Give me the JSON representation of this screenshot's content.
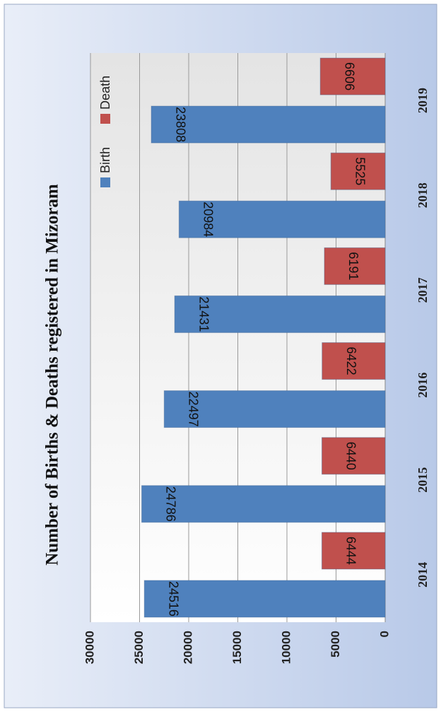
{
  "chart_data": {
    "type": "bar",
    "title": "Number of Births & Deaths registered in Mizoram",
    "categories": [
      "2014",
      "2015",
      "2016",
      "2017",
      "2018",
      "2019"
    ],
    "series": [
      {
        "name": "Birth",
        "color": "#4f81bd",
        "values": [
          24516,
          24786,
          22497,
          21431,
          20984,
          23808
        ]
      },
      {
        "name": "Death",
        "color": "#c0504d",
        "values": [
          6444,
          6440,
          6422,
          6191,
          5525,
          6606
        ]
      }
    ],
    "ylim": [
      0,
      30000
    ],
    "yticks": [
      0,
      5000,
      10000,
      15000,
      20000,
      25000,
      30000
    ],
    "grid": true,
    "legend": "top-right"
  }
}
